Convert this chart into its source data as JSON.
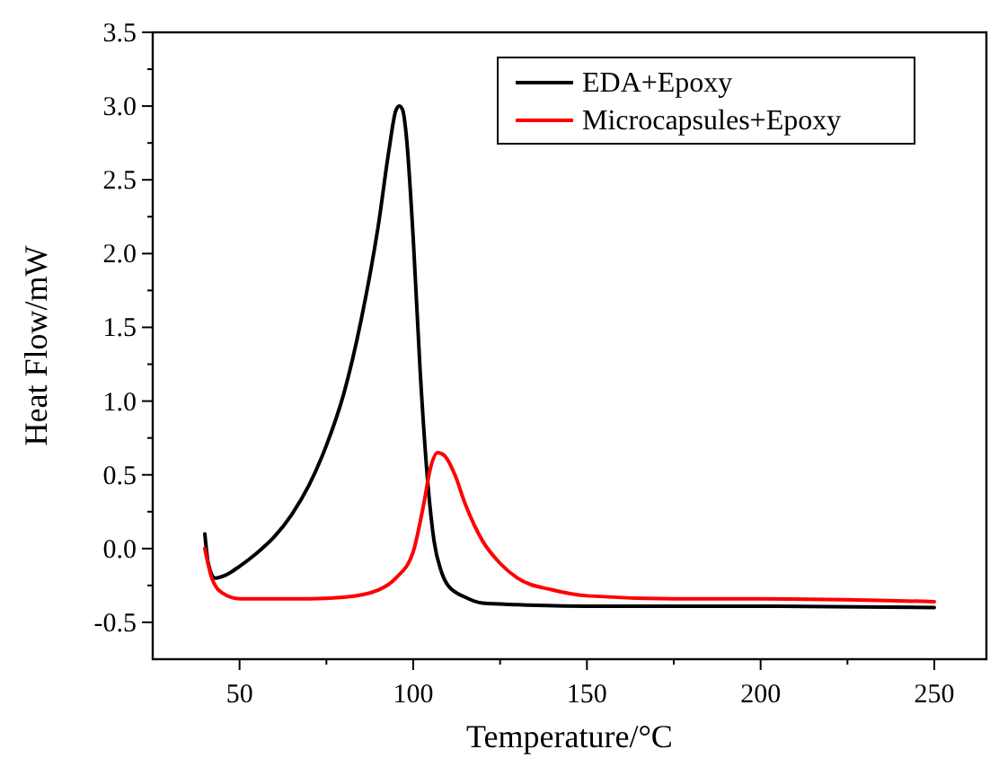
{
  "chart_data": {
    "type": "line",
    "xlabel": "Temperature/°C",
    "ylabel": "Heat Flow/mW",
    "xlim": [
      25,
      265
    ],
    "ylim": [
      -0.75,
      3.5
    ],
    "xticks": [
      50,
      {
        "value": 75,
        "label": null
      },
      100,
      {
        "value": 125,
        "label": null
      },
      150,
      {
        "value": 175,
        "label": null
      },
      200,
      {
        "value": 225,
        "label": null
      },
      250
    ],
    "yticks": [
      {
        "value": -0.5,
        "label": "-0.5"
      },
      {
        "value": -0.25,
        "label": null
      },
      {
        "value": 0,
        "label": "0.0"
      },
      {
        "value": 0.25,
        "label": null
      },
      {
        "value": 0.5,
        "label": "0.5"
      },
      {
        "value": 0.75,
        "label": null
      },
      {
        "value": 1,
        "label": "1.0"
      },
      {
        "value": 1.25,
        "label": null
      },
      {
        "value": 1.5,
        "label": "1.5"
      },
      {
        "value": 1.75,
        "label": null
      },
      {
        "value": 2,
        "label": "2.0"
      },
      {
        "value": 2.25,
        "label": null
      },
      {
        "value": 2.5,
        "label": "2.5"
      },
      {
        "value": 2.75,
        "label": null
      },
      {
        "value": 3,
        "label": "3.0"
      },
      {
        "value": 3.25,
        "label": null
      },
      {
        "value": 3.5,
        "label": "3.5"
      }
    ],
    "legend": "top right",
    "grid": false,
    "series": [
      {
        "name": "EDA+Epoxy",
        "color": "#000000",
        "x": [
          40,
          41,
          43,
          46,
          50,
          55,
          60,
          65,
          70,
          75,
          80,
          85,
          90,
          93,
          95,
          96,
          97,
          98,
          100,
          102,
          104,
          106,
          108,
          110,
          115,
          120,
          130,
          150,
          180,
          200,
          250
        ],
        "values": [
          0.1,
          -0.1,
          -0.2,
          -0.18,
          -0.12,
          -0.03,
          0.08,
          0.23,
          0.43,
          0.7,
          1.05,
          1.55,
          2.2,
          2.7,
          2.97,
          3.0,
          2.97,
          2.8,
          2.1,
          1.2,
          0.5,
          0.05,
          -0.15,
          -0.25,
          -0.33,
          -0.37,
          -0.38,
          -0.39,
          -0.39,
          -0.39,
          -0.4
        ]
      },
      {
        "name": "Microcapsules+Epoxy",
        "color": "#ff0000",
        "x": [
          40,
          42,
          45,
          50,
          60,
          70,
          80,
          90,
          95,
          100,
          103,
          105,
          107,
          109,
          112,
          115,
          120,
          125,
          130,
          140,
          150,
          175,
          200,
          250
        ],
        "values": [
          0.0,
          -0.2,
          -0.3,
          -0.34,
          -0.34,
          -0.34,
          -0.33,
          -0.28,
          -0.2,
          -0.02,
          0.3,
          0.55,
          0.65,
          0.63,
          0.5,
          0.3,
          0.05,
          -0.1,
          -0.2,
          -0.28,
          -0.32,
          -0.34,
          -0.34,
          -0.36
        ]
      }
    ]
  }
}
